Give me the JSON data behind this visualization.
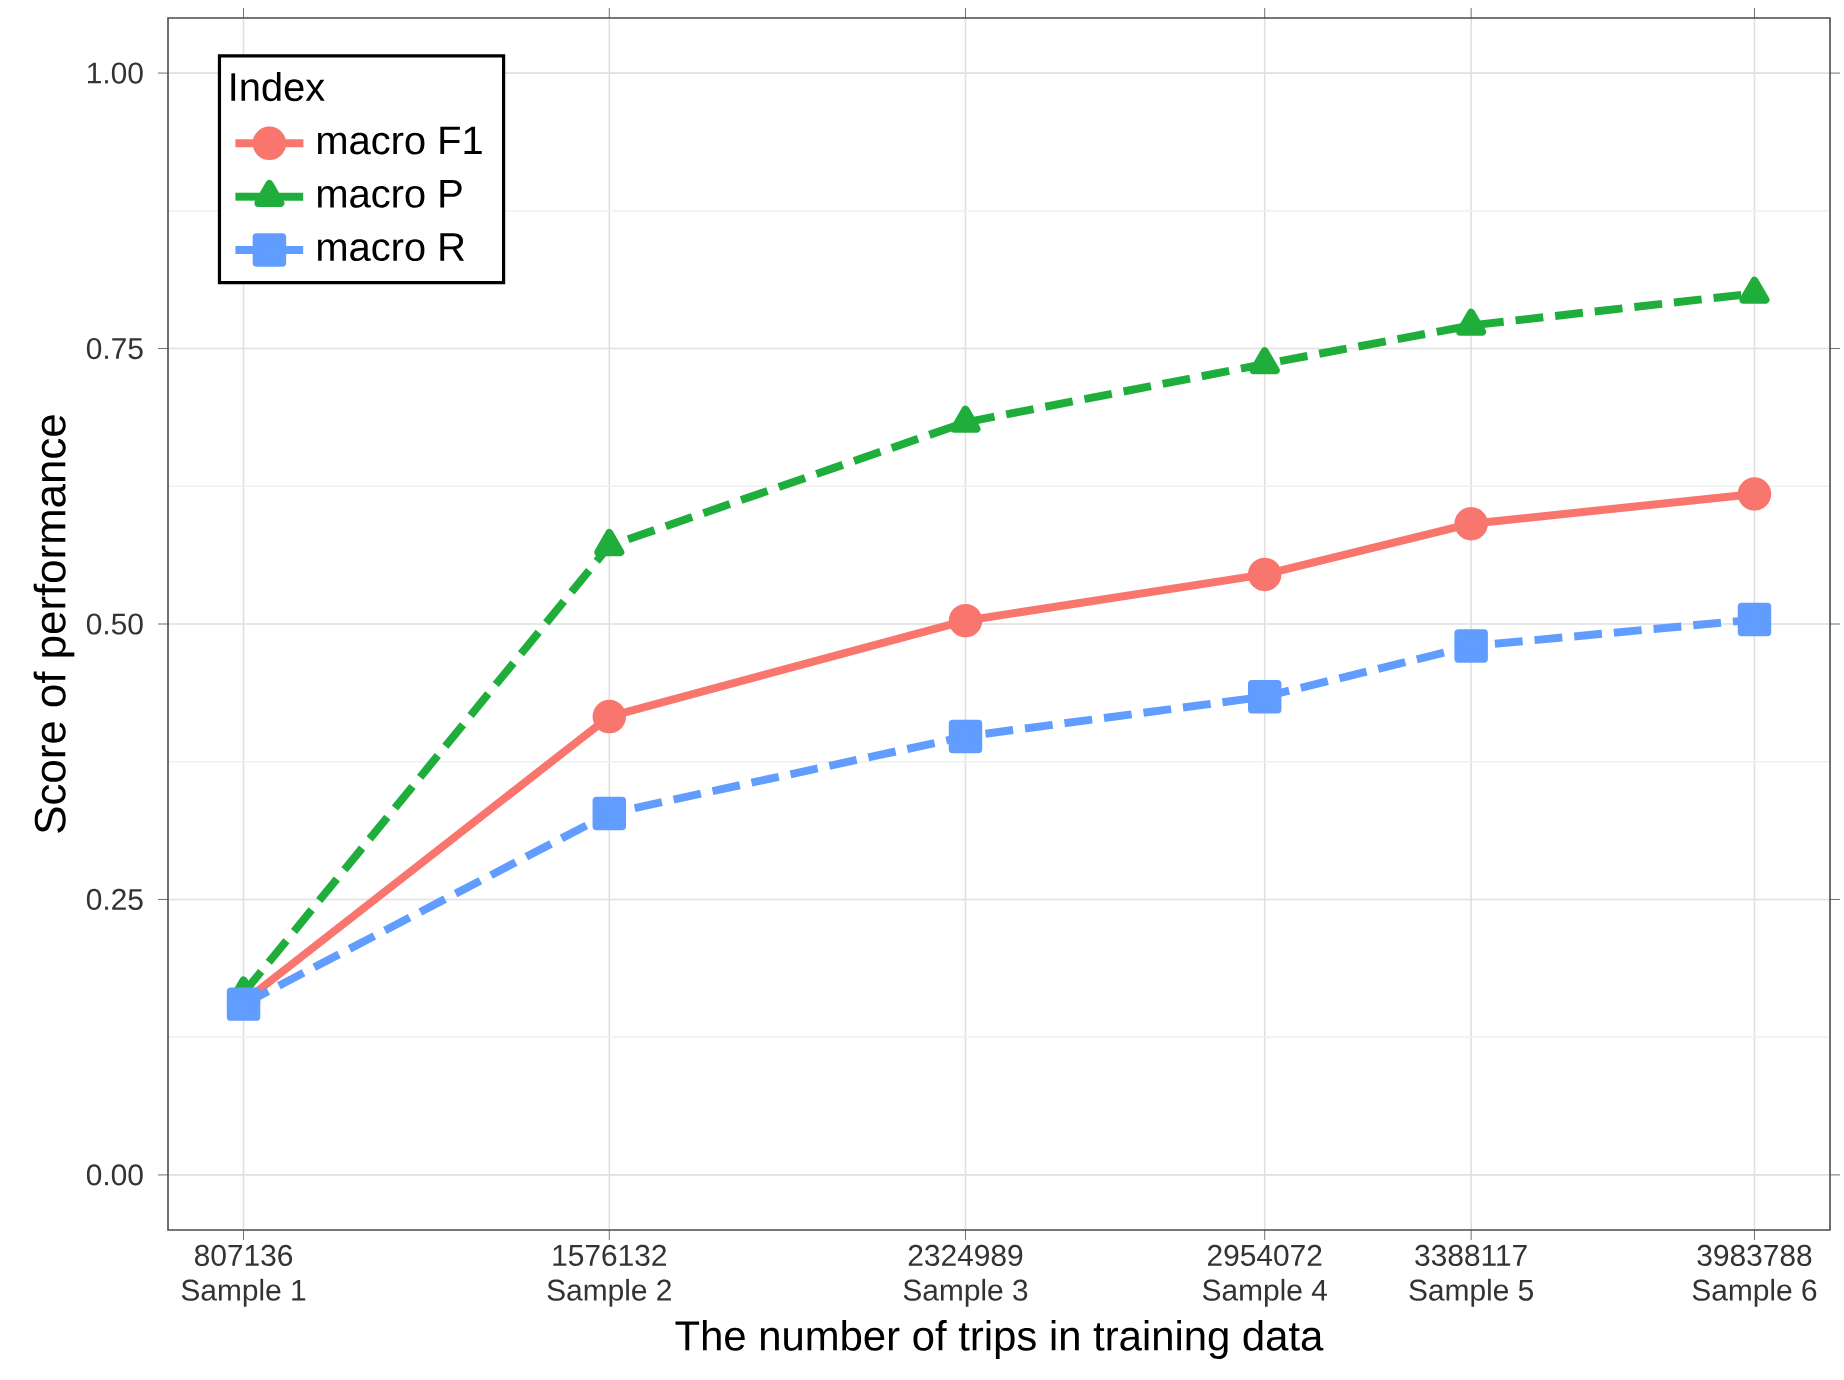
{
  "chart_data": {
    "type": "line",
    "xlabel": "The number of trips in training data",
    "ylabel": "Score of performance",
    "legend_title": "Index",
    "x": [
      807136,
      1576132,
      2324989,
      2954072,
      3388117,
      3983788
    ],
    "series": [
      {
        "name": "macro F1",
        "color": "#f8766d",
        "marker": "circle",
        "line_style": "solid",
        "values": [
          0.157,
          0.416,
          0.503,
          0.545,
          0.591,
          0.618
        ]
      },
      {
        "name": "macro P",
        "color": "#1fae3c",
        "marker": "triangle",
        "line_style": "dashed",
        "values": [
          0.165,
          0.571,
          0.683,
          0.736,
          0.771,
          0.8
        ]
      },
      {
        "name": "macro R",
        "color": "#619cff",
        "marker": "square",
        "line_style": "dashed",
        "values": [
          0.155,
          0.328,
          0.398,
          0.434,
          0.48,
          0.504
        ]
      }
    ],
    "xlim": [
      648303,
      4142621
    ],
    "ylim": [
      -0.05,
      1.05
    ],
    "xticks": [
      807136,
      1576132,
      2324989,
      2954072,
      3388117,
      3983788
    ],
    "annotations": [
      "Sample 1",
      "Sample 2",
      "Sample 3",
      "Sample 4",
      "Sample 5",
      "Sample 6"
    ],
    "yticks": [
      {
        "value": 0,
        "label": "0.00"
      },
      {
        "value": 0.25,
        "label": "0.25"
      },
      {
        "value": 0.5,
        "label": "0.50"
      },
      {
        "value": 0.75,
        "label": "0.75"
      },
      {
        "value": 1,
        "label": "1.00"
      }
    ],
    "grid": true,
    "legend": "top left"
  }
}
